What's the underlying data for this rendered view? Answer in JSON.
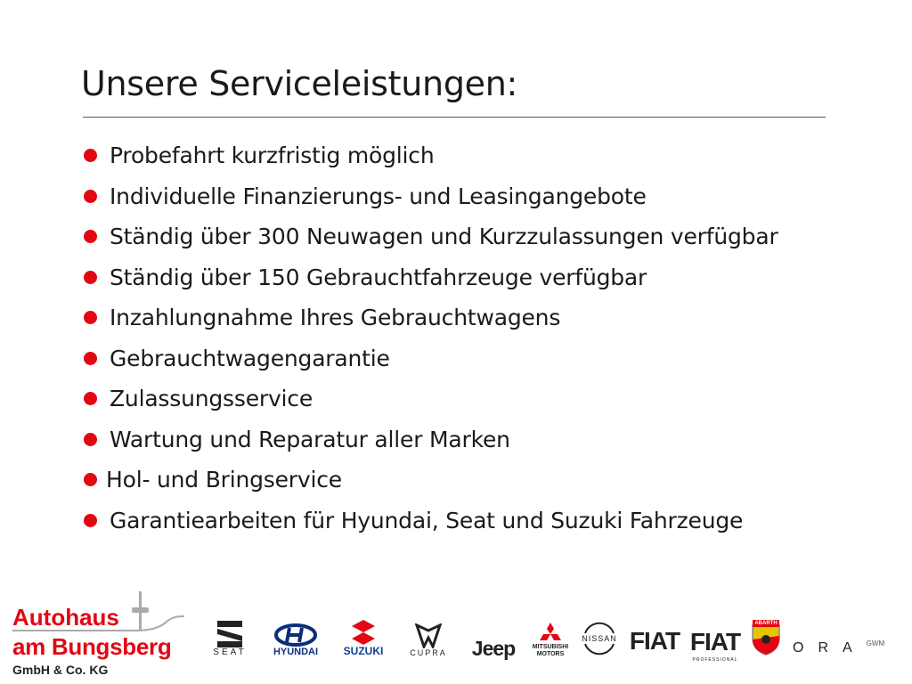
{
  "title": "Unsere Serviceleistungen:",
  "bullet_color": "#e30613",
  "services": [
    "Probefahrt kurzfristig möglich",
    "Individuelle Finanzierungs- und Leasingangebote",
    "Ständig über 300 Neuwagen und Kurzzulassungen verfügbar",
    "Ständig über 150 Gebrauchtfahrzeuge verfügbar",
    "Inzahlungnahme Ihres Gebrauchtwagens",
    "Gebrauchtwagengarantie",
    "Zulassungsservice",
    "Wartung und Reparatur aller Marken",
    "Hol- und Bringservice",
    "Garantiearbeiten für Hyundai, Seat und Suzuki Fahrzeuge"
  ],
  "dealer_logo": {
    "line1": "Autohaus",
    "line2": "am Bungsberg",
    "line3": "GmbH & Co. KG",
    "color": "#e30613"
  },
  "brands": {
    "seat": "SEAT",
    "hyundai": "HYUNDAI",
    "suzuki": "SUZUKI",
    "cupra": "CUPRA",
    "jeep": "Jeep",
    "mitsubishi": "MITSUBISHI MOTORS",
    "nissan": "NISSAN",
    "fiat": "FIAT",
    "fiat_professional": "FIAT",
    "fiat_professional_sub": "PROFESSIONAL",
    "abarth": "ABARTH",
    "ora": "ORA",
    "ora_sub": "GWM"
  }
}
